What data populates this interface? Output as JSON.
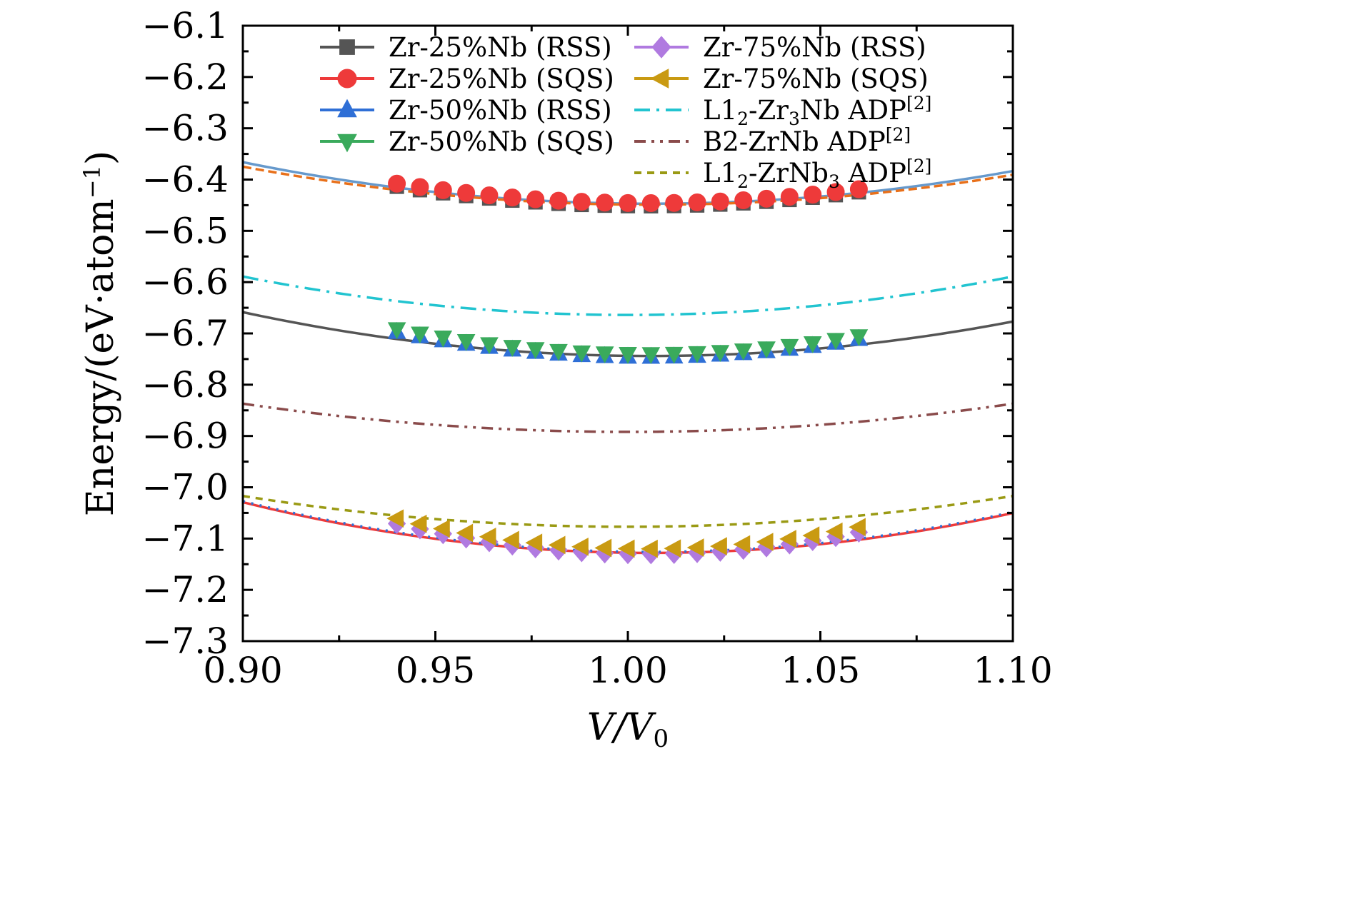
{
  "chart_data": {
    "type": "line",
    "xlabel": "V/V0",
    "xlabel_main": "V/V",
    "xlabel_sub": "0",
    "ylabel": "Energy/(eV·atom⁻¹)",
    "ylabel_main": "Energy/(eV·atom",
    "ylabel_sup": "−1",
    "ylabel_close": ")",
    "xlim": [
      0.9,
      1.1
    ],
    "ylim": [
      -7.3,
      -6.1
    ],
    "x_ticks": [
      0.9,
      0.95,
      1.0,
      1.05,
      1.1
    ],
    "x_tick_labels": [
      "0.90",
      "0.95",
      "1.00",
      "1.05",
      "1.10"
    ],
    "y_ticks": [
      -6.1,
      -6.2,
      -6.3,
      -6.4,
      -6.5,
      -6.6,
      -6.7,
      -6.8,
      -6.9,
      -7.0,
      -7.1,
      -7.2,
      -7.3
    ],
    "y_tick_labels": [
      "−6.1",
      "−6.2",
      "−6.3",
      "−6.4",
      "−6.5",
      "−6.6",
      "−6.7",
      "−6.8",
      "−6.9",
      "−7.0",
      "−7.1",
      "−7.2",
      "−7.3"
    ],
    "grid": false,
    "legend_position": "top",
    "marker_x": [
      0.94,
      0.946,
      0.952,
      0.958,
      0.964,
      0.97,
      0.976,
      0.982,
      0.988,
      0.994,
      1.0,
      1.006,
      1.012,
      1.018,
      1.024,
      1.03,
      1.036,
      1.042,
      1.048,
      1.054,
      1.06
    ],
    "series": [
      {
        "name": "Zr-25%Nb (RSS)",
        "label_main": "Zr-25%Nb (RSS)",
        "color": "#555555",
        "marker": "square",
        "E0": -6.452,
        "V0": 1.005,
        "k": 9.0,
        "legend_col": 0,
        "legend_row": 0
      },
      {
        "name": "Zr-25%Nb (SQS)",
        "label_main": "Zr-25%Nb (SQS)",
        "color": "#ee3a3a",
        "marker": "circle",
        "E0": -6.446,
        "V0": 1.005,
        "k": 9.0,
        "legend_col": 0,
        "legend_row": 1
      },
      {
        "name": "Zr-50%Nb (RSS)",
        "label_main": "Zr-50%Nb (RSS)",
        "color": "#2f6fd6",
        "marker": "triangle-up",
        "E0": -6.746,
        "V0": 1.005,
        "k": 11.5,
        "legend_col": 0,
        "legend_row": 2
      },
      {
        "name": "Zr-50%Nb (SQS)",
        "label_main": "Zr-50%Nb (SQS)",
        "color": "#3aaa5c",
        "marker": "triangle-down",
        "E0": -6.74,
        "V0": 1.005,
        "k": 11.5,
        "legend_col": 0,
        "legend_row": 3
      },
      {
        "name": "Zr-75%Nb (RSS)",
        "label_main": "Zr-75%Nb (RSS)",
        "color": "#b07ae0",
        "marker": "diamond",
        "E0": -7.13,
        "V0": 1.005,
        "k": 14.0,
        "legend_col": 1,
        "legend_row": 0
      },
      {
        "name": "Zr-75%Nb (SQS)",
        "label_main": "Zr-75%Nb (SQS)",
        "color": "#c99a12",
        "marker": "triangle-left",
        "E0": -7.12,
        "V0": 1.005,
        "k": 14.0,
        "legend_col": 1,
        "legend_row": 1
      }
    ],
    "fit_curves": [
      {
        "color": "#6699cc",
        "dash": "",
        "E0": -6.447,
        "V0": 1.006,
        "k": 7.2,
        "x_range": [
          0.9,
          1.1
        ]
      },
      {
        "color": "#e8701a",
        "dash": "12,6",
        "E0": -6.449,
        "V0": 1.006,
        "k": 6.6,
        "x_range": [
          0.9,
          1.1
        ]
      },
      {
        "color": "#555555",
        "dash": "",
        "E0": -6.744,
        "V0": 1.006,
        "k": 7.6,
        "x_range": [
          0.9,
          1.1
        ]
      },
      {
        "color": "#ee3a3a",
        "dash": "",
        "E0": -7.128,
        "V0": 1.006,
        "k": 8.8,
        "x_range": [
          0.9,
          1.1
        ]
      },
      {
        "color": "#2f6fd6",
        "dash": "3,9",
        "E0": -7.126,
        "V0": 1.006,
        "k": 8.8,
        "x_range": [
          0.9,
          1.1
        ]
      }
    ],
    "reference_curves": [
      {
        "name": "L1₂-Zr₃Nb ADP[2]",
        "label_a": "L1",
        "label_a_sub": "2",
        "label_b": "-Zr",
        "label_b_sub": "3",
        "label_c": "Nb ADP",
        "label_sup": "[2]",
        "color": "#22c4d0",
        "dash": "22,9,4,9",
        "E0": -6.664,
        "V0": 1.0,
        "k": 7.5,
        "legend_col": 1,
        "legend_row": 2
      },
      {
        "name": "B2-ZrNb ADP[2]",
        "label_a": "B2-ZrNb ADP",
        "label_sup": "[2]",
        "color": "#8a4b4b",
        "dash": "16,8,4,8,4,8",
        "E0": -6.892,
        "V0": 1.0,
        "k": 5.5,
        "legend_col": 1,
        "legend_row": 3
      },
      {
        "name": "L1₂-ZrNb₃ ADP[2]",
        "label_a": "L1",
        "label_a_sub": "2",
        "label_b": "-ZrNb",
        "label_b_sub": "3",
        "label_c": " ADP",
        "label_sup": "[2]",
        "color": "#9a9a14",
        "dash": "10,8",
        "E0": -7.077,
        "V0": 1.0,
        "k": 6.0,
        "legend_col": 1,
        "legend_row": 4
      }
    ]
  }
}
